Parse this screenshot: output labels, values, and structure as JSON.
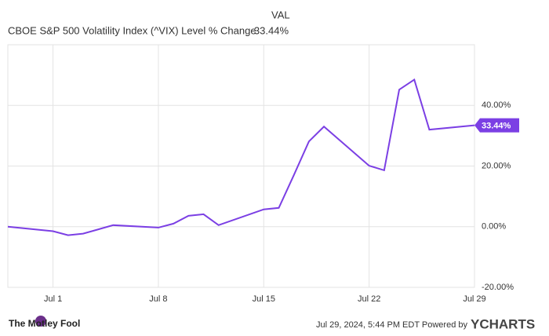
{
  "chart_data": {
    "type": "line",
    "legend_header": "VAL",
    "series": [
      {
        "name": "CBOE S&P 500 Volatility Index (^VIX) Level % Change",
        "color": "#7b3fe4",
        "values": [
          0,
          -1.5,
          -2.8,
          -2.3,
          0.5,
          -0.3,
          1.0,
          3.6,
          4.1,
          0.5,
          5.7,
          6.2,
          17.0,
          28.1,
          33.0,
          20.1,
          18.6,
          45.2,
          48.5,
          32.0,
          33.44
        ],
        "value_labels": [
          null,
          null,
          null,
          null,
          null,
          null,
          null,
          null,
          null,
          null,
          null,
          null,
          null,
          null,
          null,
          null,
          null,
          null,
          null,
          null,
          "33.44%"
        ]
      }
    ],
    "x": [
      "Jun 28",
      "Jul 1",
      "Jul 2",
      "Jul 3",
      "Jul 5",
      "Jul 8",
      "Jul 9",
      "Jul 10",
      "Jul 11",
      "Jul 12",
      "Jul 15",
      "Jul 16",
      "Jul 17",
      "Jul 18",
      "Jul 19",
      "Jul 22",
      "Jul 23",
      "Jul 24",
      "Jul 25",
      "Jul 26",
      "Jul 29"
    ],
    "xlim": [
      "Jun 28",
      "Jul 29"
    ],
    "xticks": [
      "Jul 1",
      "Jul 8",
      "Jul 15",
      "Jul 22",
      "Jul 29"
    ],
    "ylim": [
      -20,
      60
    ],
    "yticks": [
      {
        "value": -20,
        "label": "-20.00%"
      },
      {
        "value": 0,
        "label": "0.00%"
      },
      {
        "value": 20,
        "label": "20.00%"
      },
      {
        "value": 40,
        "label": "40.00%"
      }
    ],
    "grid": true
  },
  "footer": {
    "brand": "The Motley Fool",
    "timestamp": "Jul 29, 2024, 5:44 PM EDT Powered by",
    "provider": "YCHARTS"
  }
}
